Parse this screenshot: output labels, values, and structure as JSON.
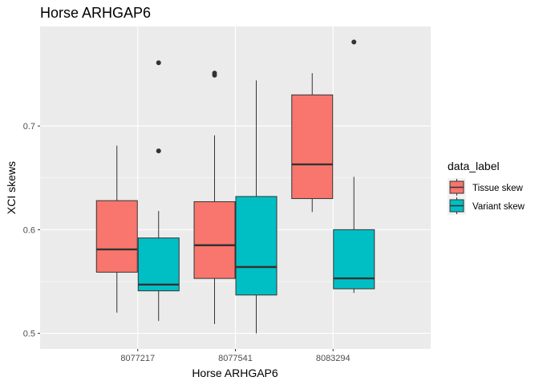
{
  "chart_data": {
    "type": "boxplot",
    "title": "Horse ARHGAP6",
    "xlabel": "Horse ARHGAP6",
    "ylabel": "XCI skews",
    "categories": [
      "8077217",
      "8077541",
      "8083294"
    ],
    "ylim": [
      0.485,
      0.796
    ],
    "yticks": [
      0.5,
      0.6,
      0.7
    ],
    "ytick_labels": [
      "0.5",
      "0.6",
      "0.7"
    ],
    "grid": true,
    "legend": {
      "title": "data_label",
      "position": "right"
    },
    "series": [
      {
        "name": "Tissue skew",
        "color": "#F8766D",
        "boxes": [
          {
            "whisker_low": 0.52,
            "q1": 0.559,
            "median": 0.581,
            "q3": 0.628,
            "whisker_high": 0.681,
            "outliers": []
          },
          {
            "whisker_low": 0.509,
            "q1": 0.553,
            "median": 0.585,
            "q3": 0.627,
            "whisker_high": 0.691,
            "outliers": [
              0.749,
              0.751
            ]
          },
          {
            "whisker_low": 0.617,
            "q1": 0.63,
            "median": 0.663,
            "q3": 0.73,
            "whisker_high": 0.751,
            "outliers": []
          }
        ]
      },
      {
        "name": "Variant skew",
        "color": "#00BFC4",
        "boxes": [
          {
            "whisker_low": 0.512,
            "q1": 0.541,
            "median": 0.547,
            "q3": 0.592,
            "whisker_high": 0.618,
            "outliers": [
              0.676,
              0.761
            ]
          },
          {
            "whisker_low": 0.5,
            "q1": 0.537,
            "median": 0.564,
            "q3": 0.632,
            "whisker_high": 0.744,
            "outliers": []
          },
          {
            "whisker_low": 0.539,
            "q1": 0.543,
            "median": 0.553,
            "q3": 0.6,
            "whisker_high": 0.651,
            "outliers": [
              0.781
            ]
          }
        ]
      }
    ]
  }
}
